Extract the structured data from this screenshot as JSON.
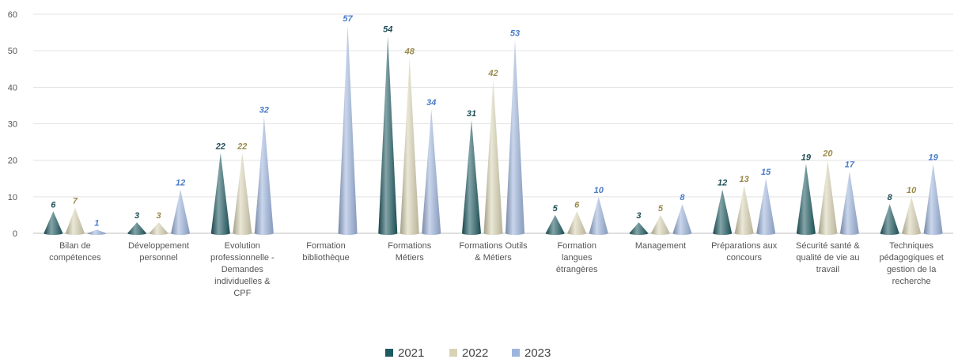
{
  "chart_data": {
    "type": "bar",
    "bar_shape": "cone",
    "categories": [
      [
        "Bilan de",
        "compétences"
      ],
      [
        "Développement",
        "personnel"
      ],
      [
        "Evolution",
        "professionnelle  -",
        "Demandes",
        "individuelles &",
        "CPF"
      ],
      [
        "Formation",
        "bibliothèque"
      ],
      [
        "Formations",
        "Métiers"
      ],
      [
        "Formations Outils",
        "& Métiers"
      ],
      [
        "Formation",
        "langues",
        "étrangères"
      ],
      [
        "Management"
      ],
      [
        "Préparations aux",
        "concours"
      ],
      [
        "Sécurité santé &",
        "qualité de vie au",
        "travail"
      ],
      [
        "Techniques",
        "pédagogiques et",
        "gestion de la",
        "recherche"
      ]
    ],
    "series": [
      {
        "name": "2021",
        "color": "#1e5a61",
        "label_color": "#1e4e56",
        "values": [
          6,
          3,
          22,
          null,
          54,
          31,
          5,
          3,
          12,
          19,
          8
        ]
      },
      {
        "name": "2022",
        "color": "#d8d3b4",
        "label_color": "#9a8a4a",
        "values": [
          7,
          3,
          22,
          null,
          48,
          42,
          6,
          5,
          13,
          20,
          10
        ]
      },
      {
        "name": "2023",
        "color": "#9db4dc",
        "label_color": "#4a7cc8",
        "values": [
          1,
          12,
          32,
          57,
          34,
          53,
          10,
          8,
          15,
          17,
          19
        ]
      }
    ],
    "ylim": [
      0,
      60
    ],
    "yticks": [
      0,
      10,
      20,
      30,
      40,
      50,
      60
    ],
    "grid": true,
    "legend_position": "bottom-center",
    "title": "",
    "xlabel": "",
    "ylabel": ""
  }
}
